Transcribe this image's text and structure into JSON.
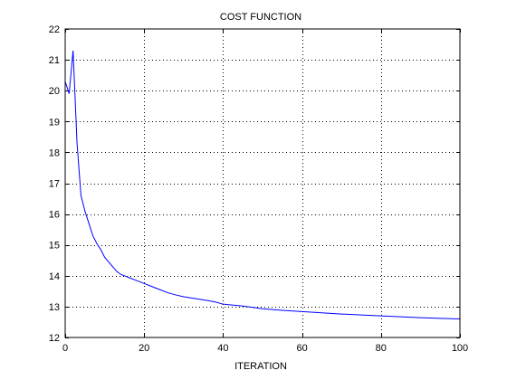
{
  "chart_data": {
    "type": "line",
    "title": "COST FUNCTION",
    "xlabel": "ITERATION",
    "ylabel": "",
    "xlim": [
      0,
      100
    ],
    "ylim": [
      12,
      22
    ],
    "xticks": [
      0,
      20,
      40,
      60,
      80,
      100
    ],
    "yticks": [
      12,
      13,
      14,
      15,
      16,
      17,
      18,
      19,
      20,
      21,
      22
    ],
    "grid": true,
    "colors": {
      "line": "#0000ff",
      "axes": "#000000",
      "grid": "#000000",
      "background": "#ffffff"
    },
    "series": [
      {
        "x": [
          0,
          1,
          2,
          3,
          4,
          5,
          6,
          7,
          8,
          9,
          10,
          11,
          12,
          13,
          14,
          15,
          16,
          18,
          20,
          22,
          24,
          26,
          28,
          30,
          32,
          34,
          36,
          38,
          40,
          45,
          50,
          55,
          60,
          65,
          70,
          75,
          80,
          85,
          90,
          95,
          100
        ],
        "y": [
          20.3,
          19.9,
          21.3,
          18.3,
          16.6,
          16.1,
          15.7,
          15.3,
          15.05,
          14.85,
          14.6,
          14.45,
          14.3,
          14.15,
          14.05,
          14.0,
          13.95,
          13.85,
          13.75,
          13.65,
          13.55,
          13.45,
          13.38,
          13.32,
          13.28,
          13.24,
          13.2,
          13.15,
          13.08,
          13.02,
          12.93,
          12.88,
          12.84,
          12.8,
          12.76,
          12.73,
          12.7,
          12.67,
          12.64,
          12.62,
          12.6
        ]
      }
    ]
  }
}
